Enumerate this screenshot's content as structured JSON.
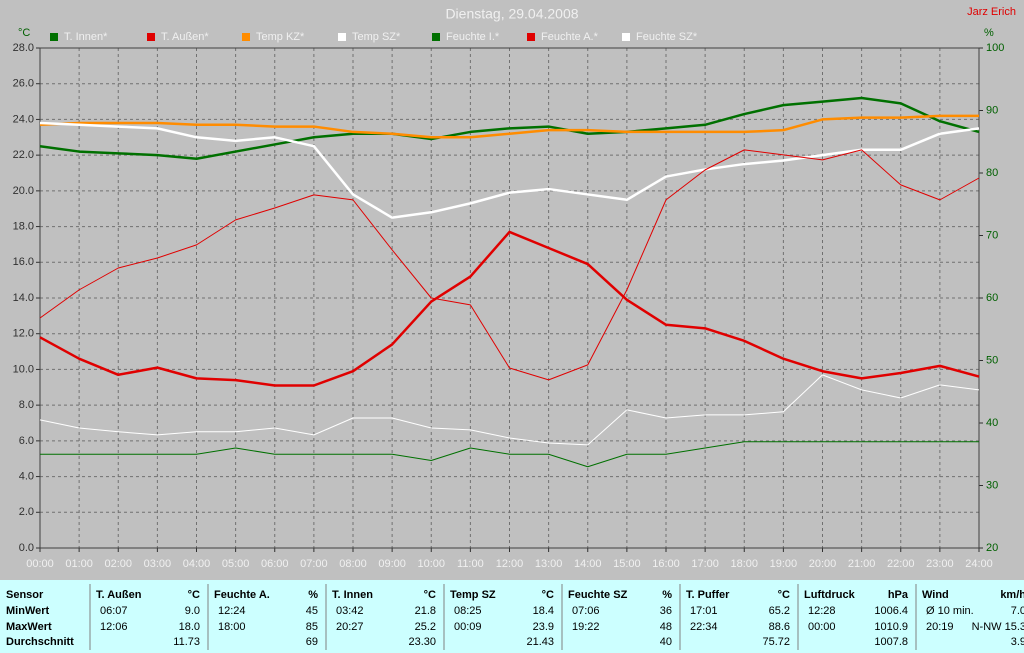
{
  "chart_data": {
    "type": "line",
    "title": "Dienstag, 29.04.2008",
    "author": "Jarz Erich",
    "ylabel": "°C",
    "y2label": "%",
    "x": [
      0,
      1,
      2,
      3,
      4,
      5,
      6,
      7,
      8,
      9,
      10,
      11,
      12,
      13,
      14,
      15,
      16,
      17,
      18,
      19,
      20,
      21,
      22,
      23,
      24
    ],
    "xlim": [
      0,
      24
    ],
    "xticks": [
      {
        "value": 0,
        "label": "00:00"
      },
      {
        "value": 1,
        "label": "01:00"
      },
      {
        "value": 2,
        "label": "02:00"
      },
      {
        "value": 3,
        "label": "03:00"
      },
      {
        "value": 4,
        "label": "04:00"
      },
      {
        "value": 5,
        "label": "05:00"
      },
      {
        "value": 6,
        "label": "06:00"
      },
      {
        "value": 7,
        "label": "07:00"
      },
      {
        "value": 8,
        "label": "08:00"
      },
      {
        "value": 9,
        "label": "09:00"
      },
      {
        "value": 10,
        "label": "10:00"
      },
      {
        "value": 11,
        "label": "11:00"
      },
      {
        "value": 12,
        "label": "12:00"
      },
      {
        "value": 13,
        "label": "13:00"
      },
      {
        "value": 14,
        "label": "14:00"
      },
      {
        "value": 15,
        "label": "15:00"
      },
      {
        "value": 16,
        "label": "16:00"
      },
      {
        "value": 17,
        "label": "17:00"
      },
      {
        "value": 18,
        "label": "18:00"
      },
      {
        "value": 19,
        "label": "19:00"
      },
      {
        "value": 20,
        "label": "20:00"
      },
      {
        "value": 21,
        "label": "21:00"
      },
      {
        "value": 22,
        "label": "22:00"
      },
      {
        "value": 23,
        "label": "23:00"
      },
      {
        "value": 24,
        "label": "24:00"
      }
    ],
    "ylim": [
      0,
      28
    ],
    "yticks": [
      {
        "value": 0,
        "label": "0.0"
      },
      {
        "value": 2,
        "label": "2.0"
      },
      {
        "value": 4,
        "label": "4.0"
      },
      {
        "value": 6,
        "label": "6.0"
      },
      {
        "value": 8,
        "label": "8.0"
      },
      {
        "value": 10,
        "label": "10.0"
      },
      {
        "value": 12,
        "label": "12.0"
      },
      {
        "value": 14,
        "label": "14.0"
      },
      {
        "value": 16,
        "label": "16.0"
      },
      {
        "value": 18,
        "label": "18.0"
      },
      {
        "value": 20,
        "label": "20.0"
      },
      {
        "value": 22,
        "label": "22.0"
      },
      {
        "value": 24,
        "label": "24.0"
      },
      {
        "value": 26,
        "label": "26.0"
      },
      {
        "value": 28,
        "label": "28.0"
      }
    ],
    "y2lim": [
      20,
      100
    ],
    "y2ticks": [
      20,
      30,
      40,
      50,
      60,
      70,
      80,
      90,
      100
    ],
    "grid": true,
    "series": [
      {
        "name": "T. Innen*",
        "color": "#007000",
        "values": [
          22.5,
          22.2,
          22.1,
          22.0,
          21.8,
          22.2,
          22.6,
          23.0,
          23.2,
          23.2,
          22.9,
          23.3,
          23.5,
          23.6,
          23.2,
          23.3,
          23.5,
          23.7,
          24.3,
          24.8,
          25.0,
          25.2,
          24.9,
          23.9,
          23.3
        ]
      },
      {
        "name": "T. Außen*",
        "color": "#e00000",
        "values": [
          11.8,
          10.6,
          9.7,
          10.1,
          9.5,
          9.4,
          9.1,
          9.1,
          9.9,
          11.4,
          13.8,
          15.2,
          17.7,
          16.8,
          15.9,
          13.9,
          12.5,
          12.3,
          11.6,
          10.6,
          9.9,
          9.5,
          9.8,
          10.2,
          9.6
        ]
      },
      {
        "name": "Temp KZ*",
        "color": "#ff8c00",
        "values": [
          23.7,
          23.8,
          23.8,
          23.8,
          23.7,
          23.7,
          23.6,
          23.6,
          23.3,
          23.2,
          23.0,
          23.0,
          23.2,
          23.4,
          23.4,
          23.3,
          23.3,
          23.3,
          23.3,
          23.4,
          24.0,
          24.1,
          24.1,
          24.2,
          24.2
        ]
      },
      {
        "name": "Temp SZ*",
        "color": "#ffffff",
        "values": [
          23.8,
          23.7,
          23.6,
          23.5,
          23.0,
          22.8,
          23.0,
          22.5,
          19.8,
          18.5,
          18.8,
          19.3,
          19.9,
          20.1,
          19.8,
          19.5,
          20.8,
          21.2,
          21.5,
          21.7,
          22.0,
          22.3,
          22.3,
          23.2,
          23.5
        ]
      },
      {
        "name": "Feuchte I.*",
        "color": "#007000",
        "axis": "y2",
        "values": [
          35,
          35,
          35,
          35,
          35,
          36,
          35,
          35,
          35,
          35,
          34,
          36,
          35,
          35,
          33,
          35,
          35,
          36,
          37,
          37,
          37,
          37,
          37,
          37,
          37
        ]
      },
      {
        "name": "Feuchte A.*",
        "color": "#e00000",
        "axis": "y2",
        "values": [
          56.8,
          61.3,
          64.8,
          66.4,
          68.5,
          72.5,
          74.4,
          76.5,
          75.7,
          67.7,
          60.0,
          58.9,
          48.8,
          46.9,
          49.3,
          61.3,
          75.7,
          80.5,
          83.7,
          82.9,
          82.1,
          83.7,
          78.1,
          75.7,
          79.2
        ]
      },
      {
        "name": "Feuchte SZ*",
        "color": "#ffffff",
        "axis": "y2",
        "values": [
          40.5,
          39.2,
          38.6,
          38.1,
          38.6,
          38.6,
          39.2,
          38.1,
          40.8,
          40.8,
          39.2,
          38.9,
          37.6,
          36.8,
          36.5,
          42.1,
          40.8,
          41.3,
          41.3,
          41.8,
          47.7,
          45.3,
          44.0,
          46.1,
          45.3
        ]
      }
    ]
  },
  "table": {
    "row_labels": [
      "Sensor",
      "MinWert",
      "MaxWert",
      "Durchschnitt"
    ],
    "groups": [
      {
        "name": "T. Außen",
        "unit": "°C",
        "rows": [
          [
            "06:07",
            "9.0"
          ],
          [
            "12:06",
            "18.0"
          ],
          [
            null,
            "11.73"
          ]
        ]
      },
      {
        "name": "Feuchte A.",
        "unit": "%",
        "rows": [
          [
            "12:24",
            "45"
          ],
          [
            "18:00",
            "85"
          ],
          [
            null,
            "69"
          ]
        ]
      },
      {
        "name": "T. Innen",
        "unit": "°C",
        "rows": [
          [
            "03:42",
            "21.8"
          ],
          [
            "20:27",
            "25.2"
          ],
          [
            null,
            "23.30"
          ]
        ]
      },
      {
        "name": "Temp SZ",
        "unit": "°C",
        "rows": [
          [
            "08:25",
            "18.4"
          ],
          [
            "00:09",
            "23.9"
          ],
          [
            null,
            "21.43"
          ]
        ]
      },
      {
        "name": "Feuchte SZ",
        "unit": "%",
        "rows": [
          [
            "07:06",
            "36"
          ],
          [
            "19:22",
            "48"
          ],
          [
            null,
            "40"
          ]
        ]
      },
      {
        "name": "T. Puffer",
        "unit": "°C",
        "rows": [
          [
            "17:01",
            "65.2"
          ],
          [
            "22:34",
            "88.6"
          ],
          [
            null,
            "75.72"
          ]
        ]
      },
      {
        "name": "Luftdruck",
        "unit": "hPa",
        "rows": [
          [
            "12:28",
            "1006.4"
          ],
          [
            "00:00",
            "1010.9"
          ],
          [
            null,
            "1007.8"
          ]
        ]
      },
      {
        "name": "Wind",
        "unit": "km/h",
        "rows": [
          [
            "Ø 10 min.",
            "7.0"
          ],
          [
            "20:19",
            "N-NW 15.3"
          ],
          [
            null,
            "3.9"
          ]
        ]
      }
    ]
  }
}
